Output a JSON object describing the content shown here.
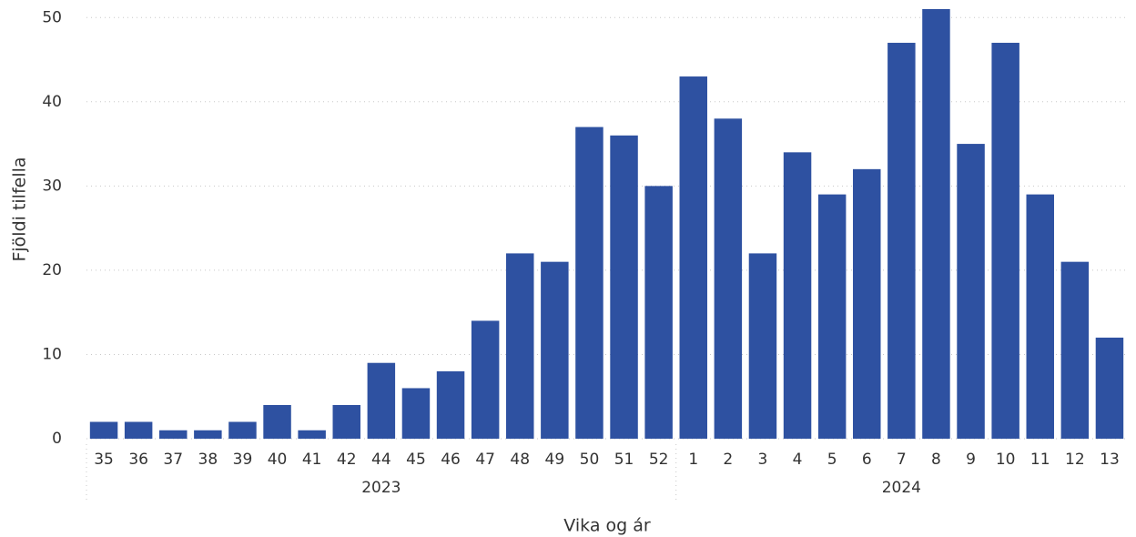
{
  "chart_data": {
    "type": "bar",
    "y_label": "Fjöldi tilfella",
    "x_label": "Vika og ár",
    "color": "#2e51a1",
    "grid": true,
    "ylim": [
      0,
      51
    ],
    "yticks": [
      0,
      10,
      20,
      30,
      40,
      50
    ],
    "groups": [
      {
        "name": "2023",
        "categories": [
          "35",
          "36",
          "37",
          "38",
          "39",
          "40",
          "41",
          "42",
          "44",
          "45",
          "46",
          "47",
          "48",
          "49",
          "50",
          "51",
          "52"
        ],
        "values": [
          2,
          2,
          1,
          1,
          2,
          4,
          1,
          4,
          9,
          6,
          8,
          14,
          22,
          21,
          37,
          36,
          30
        ]
      },
      {
        "name": "2024",
        "categories": [
          "1",
          "2",
          "3",
          "4",
          "5",
          "6",
          "7",
          "8",
          "9",
          "10",
          "11",
          "12",
          "13"
        ],
        "values": [
          43,
          38,
          22,
          34,
          29,
          32,
          47,
          51,
          35,
          47,
          29,
          21,
          12
        ]
      }
    ]
  }
}
